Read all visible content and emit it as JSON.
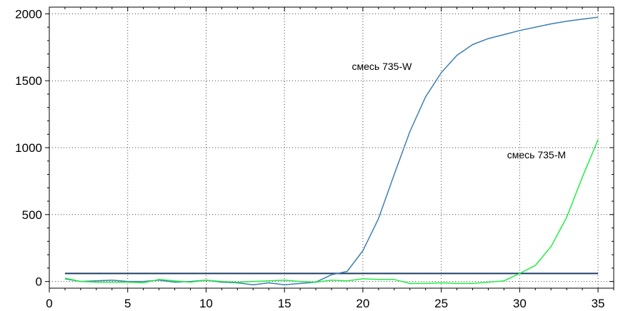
{
  "chart_data": {
    "type": "line",
    "title": "",
    "xlabel": "",
    "ylabel": "",
    "xlim": [
      0,
      36
    ],
    "ylim": [
      -50,
      2050
    ],
    "x_ticks": [
      0,
      5,
      10,
      15,
      20,
      25,
      30,
      35
    ],
    "y_ticks": [
      0,
      500,
      1000,
      1500,
      2000
    ],
    "grid": "dotted",
    "threshold": {
      "value": 60,
      "color": "#1f3d68"
    },
    "series": [
      {
        "name": "смесь 735-W",
        "color": "#3f7fb0",
        "label_at": [
          19.3,
          1560
        ],
        "x": [
          1,
          2,
          3,
          4,
          5,
          6,
          7,
          8,
          9,
          10,
          11,
          12,
          13,
          14,
          15,
          16,
          17,
          18,
          19,
          20,
          21,
          22,
          23,
          24,
          25,
          26,
          27,
          28,
          29,
          30,
          31,
          32,
          33,
          34,
          35
        ],
        "y": [
          20,
          0,
          5,
          10,
          0,
          0,
          10,
          -5,
          0,
          10,
          -5,
          -10,
          -25,
          -10,
          -25,
          -15,
          -5,
          50,
          75,
          230,
          470,
          800,
          1120,
          1380,
          1560,
          1690,
          1770,
          1815,
          1845,
          1875,
          1900,
          1925,
          1945,
          1960,
          1975
        ]
      },
      {
        "name": "смесь 735-M",
        "color": "#22ee44",
        "label_at": [
          29.2,
          900
        ],
        "x": [
          1,
          2,
          3,
          4,
          5,
          6,
          7,
          8,
          9,
          10,
          11,
          12,
          13,
          14,
          15,
          16,
          17,
          18,
          19,
          20,
          21,
          22,
          23,
          24,
          25,
          26,
          27,
          28,
          29,
          30,
          31,
          32,
          33,
          34,
          35
        ],
        "y": [
          25,
          0,
          -5,
          -5,
          -5,
          -10,
          15,
          5,
          -5,
          10,
          0,
          -5,
          0,
          5,
          10,
          0,
          -5,
          10,
          5,
          20,
          15,
          15,
          -15,
          -15,
          -10,
          -15,
          -15,
          -5,
          5,
          60,
          120,
          260,
          480,
          780,
          1060
        ]
      }
    ]
  }
}
